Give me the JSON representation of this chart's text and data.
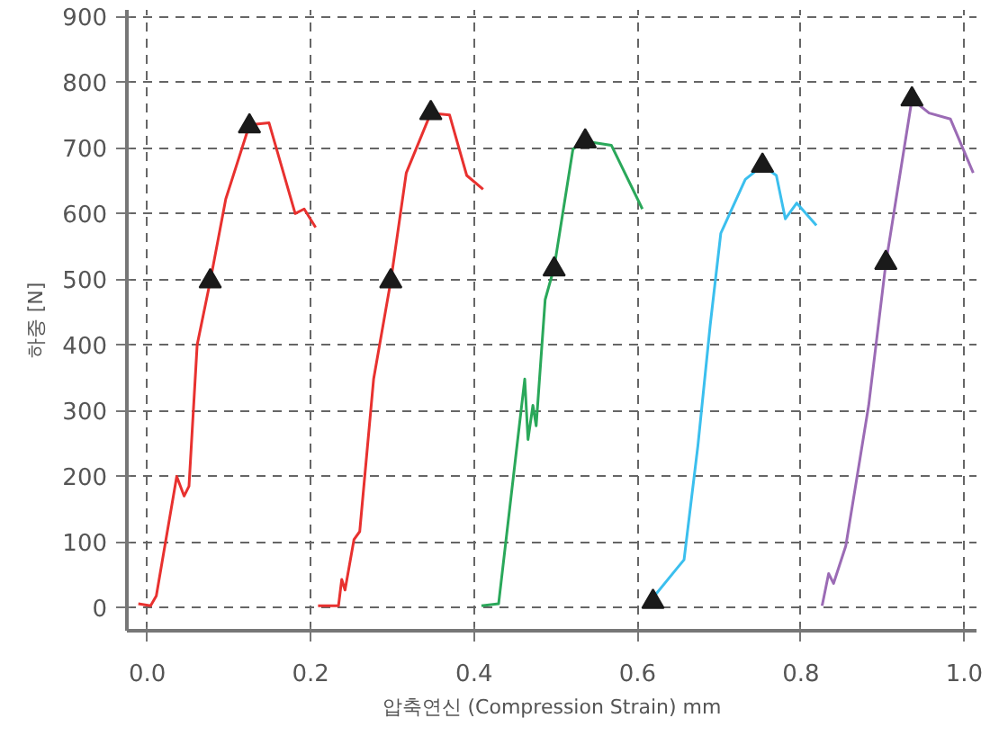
{
  "chart_data": {
    "type": "line",
    "xlabel": "압축연신 (Compression Strain) mm",
    "ylabel": "하중 [N]",
    "xlim": [
      -0.025,
      1.015
    ],
    "ylim": [
      -35,
      910
    ],
    "xticks": [
      {
        "value": 0,
        "label": "0.0"
      },
      0.2,
      0.4,
      0.6,
      0.8,
      {
        "value": 1,
        "label": "1.0"
      }
    ],
    "yticks": [
      0,
      100,
      200,
      300,
      400,
      500,
      600,
      700,
      800,
      900
    ],
    "grid": true,
    "line_style": "solid",
    "series": [
      {
        "color": "#e8312f",
        "x": [
          -0.011,
          0.004,
          0.011,
          0.036,
          0.045,
          0.051,
          0.061,
          0.077,
          0.096,
          0.125,
          0.149,
          0.181,
          0.192,
          0.206
        ],
        "values": [
          6,
          3,
          18,
          200,
          170,
          185,
          400,
          497,
          622,
          735,
          738,
          600,
          607,
          579
        ]
      },
      {
        "color": "#e8312f",
        "x": [
          0.209,
          0.234,
          0.238,
          0.242,
          0.253,
          0.26,
          0.277,
          0.298,
          0.317,
          0.347,
          0.37,
          0.391,
          0.411
        ],
        "values": [
          3,
          3,
          43,
          27,
          104,
          116,
          348,
          497,
          662,
          753,
          750,
          658,
          637
        ]
      },
      {
        "color": "#2aa85a",
        "x": [
          0.409,
          0.43,
          0.462,
          0.466,
          0.472,
          0.476,
          0.487,
          0.498,
          0.521,
          0.536,
          0.568,
          0.606
        ],
        "values": [
          3,
          6,
          348,
          256,
          308,
          277,
          469,
          518,
          698,
          710,
          704,
          607
        ]
      },
      {
        "color": "#3bbfee",
        "x": [
          0.611,
          0.647,
          0.657,
          0.674,
          0.689,
          0.702,
          0.732,
          0.753,
          0.77,
          0.781,
          0.795,
          0.819
        ],
        "values": [
          3,
          58,
          73,
          247,
          430,
          570,
          652,
          673,
          658,
          592,
          616,
          582
        ]
      },
      {
        "color": "#9b6bb5",
        "x": [
          0.826,
          0.834,
          0.84,
          0.855,
          0.883,
          0.904,
          0.936,
          0.957,
          0.983,
          1.011
        ],
        "values": [
          3,
          52,
          37,
          94,
          308,
          524,
          774,
          753,
          744,
          662
        ]
      },
      {
        "type": "scatter",
        "marker": "triangle",
        "color": "#1a1a1a",
        "x": [
          0.077,
          0.125,
          0.298,
          0.347,
          0.498,
          0.536,
          0.619,
          0.753,
          0.904,
          0.936
        ],
        "values": [
          497,
          733,
          497,
          753,
          515,
          710,
          9,
          673,
          525,
          774
        ]
      }
    ]
  }
}
